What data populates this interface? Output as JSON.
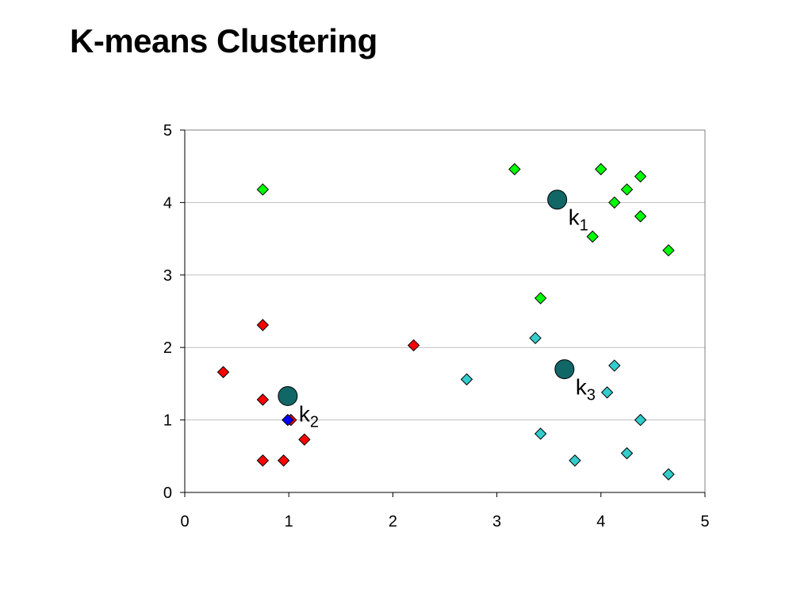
{
  "slide": {
    "title": "K-means Clustering"
  },
  "chart_data": {
    "type": "scatter",
    "title": "",
    "xlabel": "",
    "ylabel": "",
    "xlim": [
      0,
      5
    ],
    "ylim": [
      0,
      5
    ],
    "xticks": [
      0,
      1,
      2,
      3,
      4,
      5
    ],
    "yticks": [
      0,
      1,
      2,
      3,
      4,
      5
    ],
    "grid": "horizontal",
    "series": [
      {
        "color": "#00ff00",
        "marker": "diamond",
        "points": [
          [
            0.75,
            4.18
          ],
          [
            3.17,
            4.46
          ],
          [
            4.0,
            4.46
          ],
          [
            4.38,
            4.36
          ],
          [
            4.25,
            4.18
          ],
          [
            4.13,
            4.0
          ],
          [
            4.38,
            3.81
          ],
          [
            3.92,
            3.53
          ],
          [
            4.65,
            3.34
          ],
          [
            3.42,
            2.68
          ]
        ]
      },
      {
        "color": "#ff0000",
        "marker": "diamond",
        "points": [
          [
            0.75,
            2.31
          ],
          [
            0.37,
            1.66
          ],
          [
            2.2,
            2.03
          ],
          [
            0.75,
            1.28
          ],
          [
            1.02,
            1.0
          ],
          [
            1.15,
            0.73
          ],
          [
            0.75,
            0.44
          ],
          [
            0.95,
            0.44
          ]
        ]
      },
      {
        "color": "#33cccc",
        "marker": "diamond",
        "points": [
          [
            3.37,
            2.13
          ],
          [
            2.71,
            1.56
          ],
          [
            4.13,
            1.75
          ],
          [
            4.06,
            1.38
          ],
          [
            4.38,
            1.0
          ],
          [
            3.42,
            0.81
          ],
          [
            3.75,
            0.44
          ],
          [
            4.25,
            0.54
          ],
          [
            4.65,
            0.25
          ]
        ]
      },
      {
        "color": "#0000ff",
        "marker": "diamond",
        "points": [
          [
            0.99,
            1.0
          ]
        ]
      }
    ],
    "centroids": [
      {
        "label": "k",
        "subscript": "1",
        "x": 3.58,
        "y": 4.04,
        "color": "#116666"
      },
      {
        "label": "k",
        "subscript": "2",
        "x": 0.99,
        "y": 1.33,
        "color": "#116666"
      },
      {
        "label": "k",
        "subscript": "3",
        "x": 3.65,
        "y": 1.7,
        "color": "#116666"
      }
    ]
  }
}
